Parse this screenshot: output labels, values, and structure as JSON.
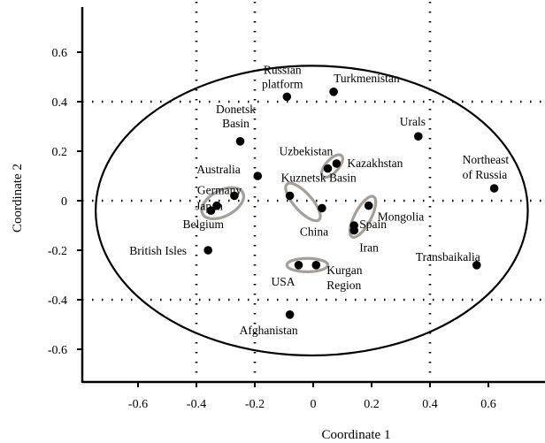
{
  "chart_data": {
    "type": "scatter",
    "xlabel": "Coordinate 1",
    "ylabel": "Coordinate 2",
    "xlim": [
      -0.8,
      0.78
    ],
    "ylim": [
      -0.68,
      0.7
    ],
    "xticks": [
      -0.6,
      -0.4,
      -0.2,
      0,
      0.2,
      0.4,
      0.6
    ],
    "yticks": [
      0.6,
      0.4,
      0.2,
      0,
      -0.2,
      -0.4,
      -0.6
    ],
    "xtick_labels": [
      "-0.6",
      "-0.4",
      "-0.2",
      "0",
      "0.2",
      "0.4",
      "0.6"
    ],
    "ytick_labels": [
      "0.6",
      "0.4",
      "0.2",
      "0",
      "-0.2",
      "-0.4",
      "-0.6"
    ],
    "grid": "dotted lines at x = -0.4, -0.2, 0.4 and y = 0.4, 0, -0.4",
    "grid_x": [
      -0.4,
      -0.2,
      0.4
    ],
    "grid_y": [
      0.4,
      0,
      -0.4
    ],
    "ellipse": {
      "cx": -0.005,
      "cy": -0.04,
      "rx": 0.74,
      "ry": 0.585
    },
    "points": [
      {
        "label": "Russian platform",
        "label_lines": [
          "Russian",
          "platform"
        ],
        "x": -0.09,
        "y": 0.42
      },
      {
        "label": "Turkmenistan",
        "label_lines": [
          "Turkmenistan"
        ],
        "x": 0.07,
        "y": 0.44
      },
      {
        "label": "Urals",
        "label_lines": [
          "Urals"
        ],
        "x": 0.36,
        "y": 0.26
      },
      {
        "label": "Donetsk Basin",
        "label_lines": [
          "Donetsk",
          "Basin"
        ],
        "x": -0.25,
        "y": 0.24
      },
      {
        "label": "Uzbekistan",
        "label_lines": [
          "Uzbekistan"
        ],
        "x": 0.05,
        "y": 0.13
      },
      {
        "label": "Kazakhstan",
        "label_lines": [
          "Kazakhstan"
        ],
        "x": 0.08,
        "y": 0.15
      },
      {
        "label": "Australia",
        "label_lines": [
          "Australia"
        ],
        "x": -0.19,
        "y": 0.1
      },
      {
        "label": "Northeast of Russia",
        "label_lines": [
          "Northeast",
          "of Russia"
        ],
        "x": 0.62,
        "y": 0.05
      },
      {
        "label": "Germany",
        "label_lines": [
          "Germany"
        ],
        "x": -0.27,
        "y": 0.02
      },
      {
        "label": "Kuznetsk Basin",
        "label_lines": [
          "Kuznetsk Basin"
        ],
        "x": -0.08,
        "y": 0.02
      },
      {
        "label": "Japan",
        "label_lines": [
          "Japan"
        ],
        "x": -0.33,
        "y": -0.02
      },
      {
        "label": "Belgium",
        "label_lines": [
          "Belgium"
        ],
        "x": -0.35,
        "y": -0.04
      },
      {
        "label": "China",
        "label_lines": [
          "China"
        ],
        "x": 0.03,
        "y": -0.03
      },
      {
        "label": "Mongolia",
        "label_lines": [
          "Mongolia"
        ],
        "x": 0.19,
        "y": -0.02
      },
      {
        "label": "Spain",
        "label_lines": [
          "Spain"
        ],
        "x": 0.14,
        "y": -0.1
      },
      {
        "label": "Iran",
        "label_lines": [
          "Iran"
        ],
        "x": 0.14,
        "y": -0.12
      },
      {
        "label": "British Isles",
        "label_lines": [
          "British Isles"
        ],
        "x": -0.36,
        "y": -0.2
      },
      {
        "label": "Transbaikalia",
        "label_lines": [
          "Transbaikalia"
        ],
        "x": 0.56,
        "y": -0.26
      },
      {
        "label": "USA",
        "label_lines": [
          "USA"
        ],
        "x": -0.05,
        "y": -0.26
      },
      {
        "label": "Kurgan Region",
        "label_lines": [
          "Kurgan",
          "Region"
        ],
        "x": 0.01,
        "y": -0.26
      },
      {
        "label": "Afghanistan",
        "label_lines": [
          "Afghanistan"
        ],
        "x": -0.08,
        "y": -0.46
      }
    ],
    "clusters": [
      {
        "members": [
          "Germany",
          "Japan",
          "Belgium"
        ],
        "cx": -0.31,
        "cy": -0.01,
        "rx": 0.078,
        "ry": 0.052,
        "angle": -28
      },
      {
        "members": [
          "Kuznetsk Basin",
          "China"
        ],
        "cx": -0.035,
        "cy": -0.005,
        "rx": 0.082,
        "ry": 0.036,
        "angle": 48
      },
      {
        "members": [
          "Uzbekistan",
          "Kazakhstan"
        ],
        "cx": 0.065,
        "cy": 0.14,
        "rx": 0.048,
        "ry": 0.026,
        "angle": -48
      },
      {
        "members": [
          "Mongolia",
          "Spain",
          "Iran"
        ],
        "cx": 0.17,
        "cy": -0.065,
        "rx": 0.078,
        "ry": 0.033,
        "angle": -62
      },
      {
        "members": [
          "USA",
          "Kurgan Region"
        ],
        "cx": -0.02,
        "cy": -0.26,
        "rx": 0.07,
        "ry": 0.027,
        "angle": 0
      }
    ]
  }
}
